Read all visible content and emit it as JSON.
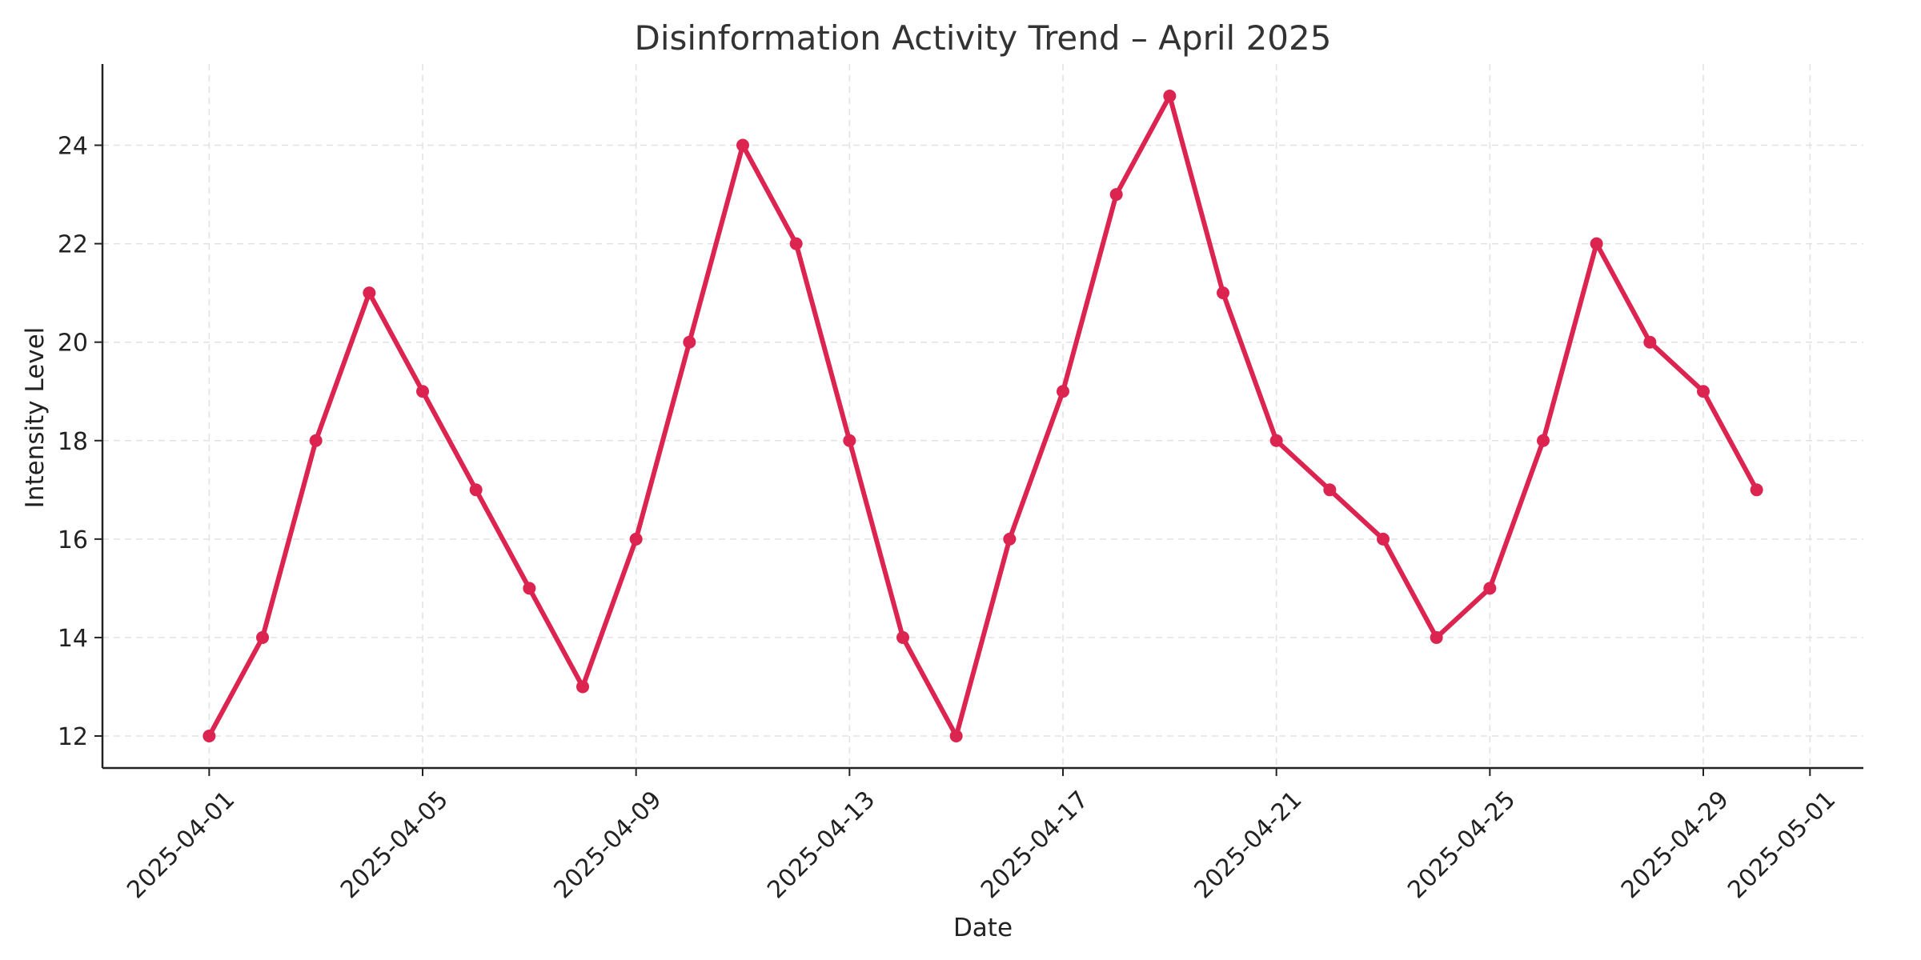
{
  "chart_data": {
    "type": "line",
    "title": "Disinformation Activity Trend – April 2025",
    "xlabel": "Date",
    "ylabel": "Intensity Level",
    "x": [
      "2025-04-01",
      "2025-04-02",
      "2025-04-03",
      "2025-04-04",
      "2025-04-05",
      "2025-04-06",
      "2025-04-07",
      "2025-04-08",
      "2025-04-09",
      "2025-04-10",
      "2025-04-11",
      "2025-04-12",
      "2025-04-13",
      "2025-04-14",
      "2025-04-15",
      "2025-04-16",
      "2025-04-17",
      "2025-04-18",
      "2025-04-19",
      "2025-04-20",
      "2025-04-21",
      "2025-04-22",
      "2025-04-23",
      "2025-04-24",
      "2025-04-25",
      "2025-04-26",
      "2025-04-27",
      "2025-04-28",
      "2025-04-29",
      "2025-04-30"
    ],
    "series": [
      {
        "values": [
          12,
          14,
          18,
          21,
          19,
          17,
          15,
          13,
          16,
          20,
          24,
          22,
          18,
          14,
          12,
          16,
          19,
          23,
          25,
          21,
          18,
          17,
          16,
          14,
          15,
          18,
          22,
          20,
          19,
          17
        ],
        "color": "#dc2450"
      }
    ],
    "x_ticks": [
      "2025-04-01",
      "2025-04-05",
      "2025-04-09",
      "2025-04-13",
      "2025-04-17",
      "2025-04-21",
      "2025-04-25",
      "2025-04-29",
      "2025-05-01"
    ],
    "y_ticks": [
      12,
      14,
      16,
      18,
      20,
      22,
      24
    ],
    "xlim": [
      "2025-03-30",
      "2025-05-02"
    ],
    "ylim": [
      11.35,
      25.65
    ],
    "grid": true,
    "legend": "none"
  }
}
